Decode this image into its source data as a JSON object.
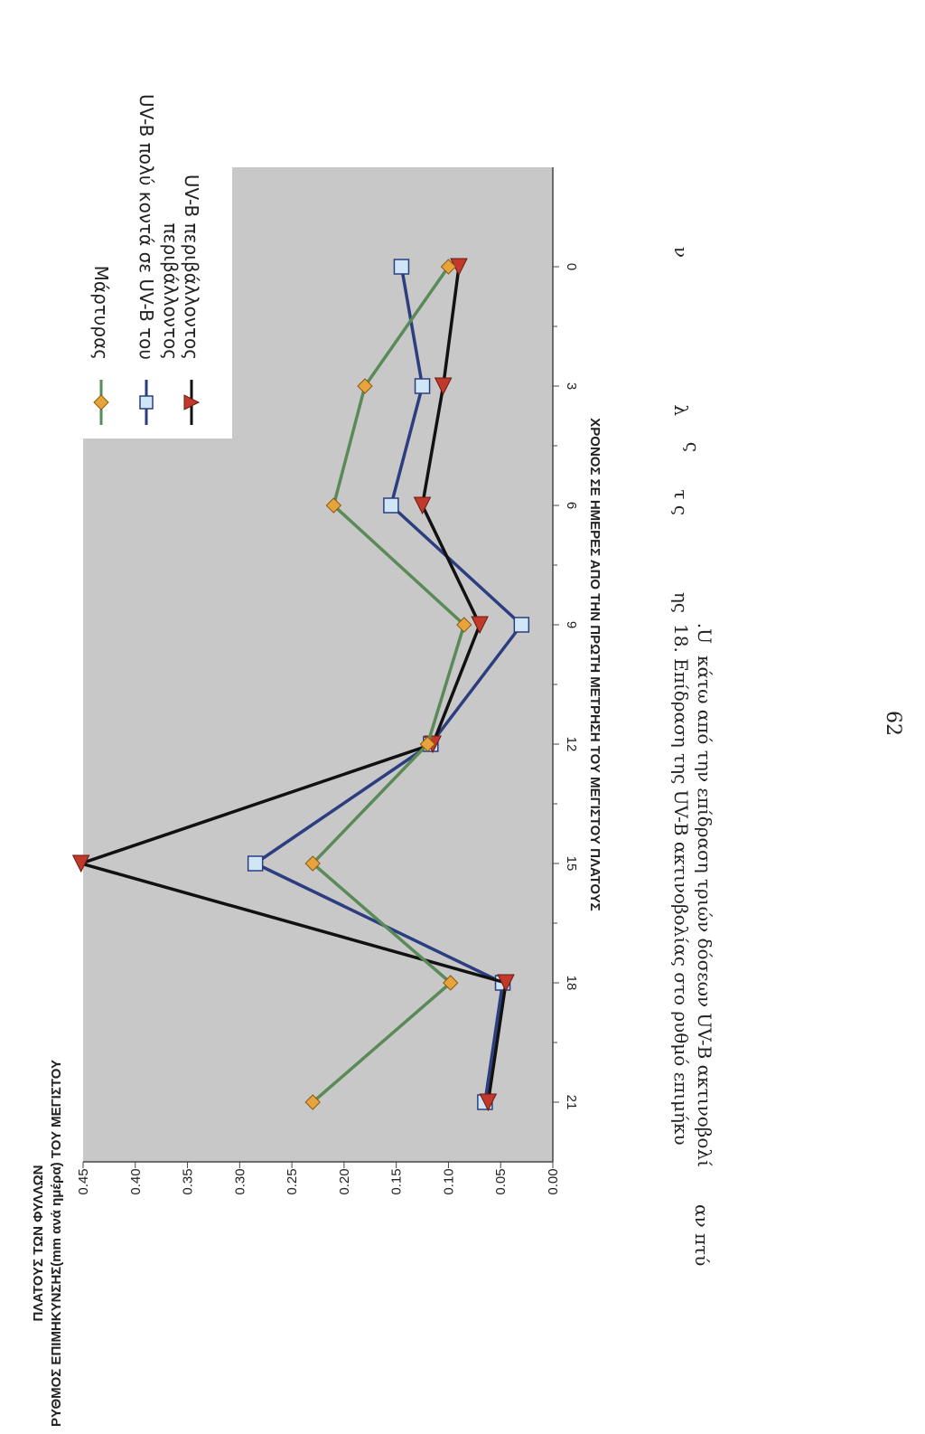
{
  "chart_data": {
    "type": "line",
    "xlabel": "ΧΡΟΝΟΣ ΣΕ ΗΜΕΡΕΣ ΑΠΟ ΤΗΝ ΠΡΩΤΗ ΜΕΤΡΗΣΗ ΤΟΥ ΜΕΓΙΣΤΟΥ ΠΛΑΤΟΥΣ",
    "ylabel_line1": "ΡΥΘΜΟΣ ΕΠΙΜΗΚΥΝΣΗΣ(mm ανά ημέρα) ΤΟΥ ΜΕΓΙΣΤΟΥ",
    "ylabel_line2": "ΠΛΑΤΟΥΣ ΤΩΝ ΦΥΛΛΩΝ",
    "x": [
      0,
      3,
      6,
      9,
      12,
      15,
      18,
      21
    ],
    "xticks": [
      "0",
      "3",
      "6",
      "9",
      "12",
      "15",
      "18",
      "21"
    ],
    "yticks": [
      "0.00",
      "0.05",
      "0.10",
      "0.15",
      "0.20",
      "0.25",
      "0.30",
      "0.35",
      "0.40",
      "0.45"
    ],
    "xlim": [
      -2.5,
      22.5
    ],
    "ylim": [
      0,
      0.45
    ],
    "grid": false,
    "legend_position": "top-right",
    "series": [
      {
        "name": "Μάρτυρας",
        "marker": "diamond",
        "color": "#5a8a58",
        "marker_color": "#e8a43c",
        "values": [
          0.1,
          0.18,
          0.21,
          0.085,
          0.12,
          0.23,
          0.098,
          0.23
        ]
      },
      {
        "name": "UV-B πολύ κοντά σε UV-B του περιβάλλοντος",
        "marker": "square",
        "color": "#2c3e80",
        "marker_color": "#cfe6f7",
        "values": [
          0.145,
          0.125,
          0.155,
          0.03,
          0.117,
          0.285,
          0.048,
          0.065
        ]
      },
      {
        "name": "UV-B περιβάλλοντος",
        "marker": "triangle",
        "color": "#111111",
        "marker_color": "#c0392b",
        "values": [
          0.09,
          0.105,
          0.125,
          0.07,
          0.115,
          0.452,
          0.045,
          0.062
        ]
      }
    ]
  },
  "legend": {
    "item1": "Μάρτυρας",
    "item2_line1": "UV-B πολύ κοντά σε UV-B του",
    "item2_line2": "περιβάλλοντος",
    "item3": "UV-B περιβάλλοντος"
  },
  "caption": {
    "line1": "18. Επίδραση της UV-B ακτινοβολίας στο ρυθμό επιμήκυ",
    "line1_b": "ης",
    "line1_c": "τ ς",
    "line1_d": "ς",
    "line1_e": "λ",
    "line1_f": "ν",
    "line2": "κάτω από την επίδραση τριών δόσεων UV-B ακτινοβολί",
    "line2_b": ".U",
    "left_fragment": "αν πτύ"
  },
  "page_number": "62"
}
